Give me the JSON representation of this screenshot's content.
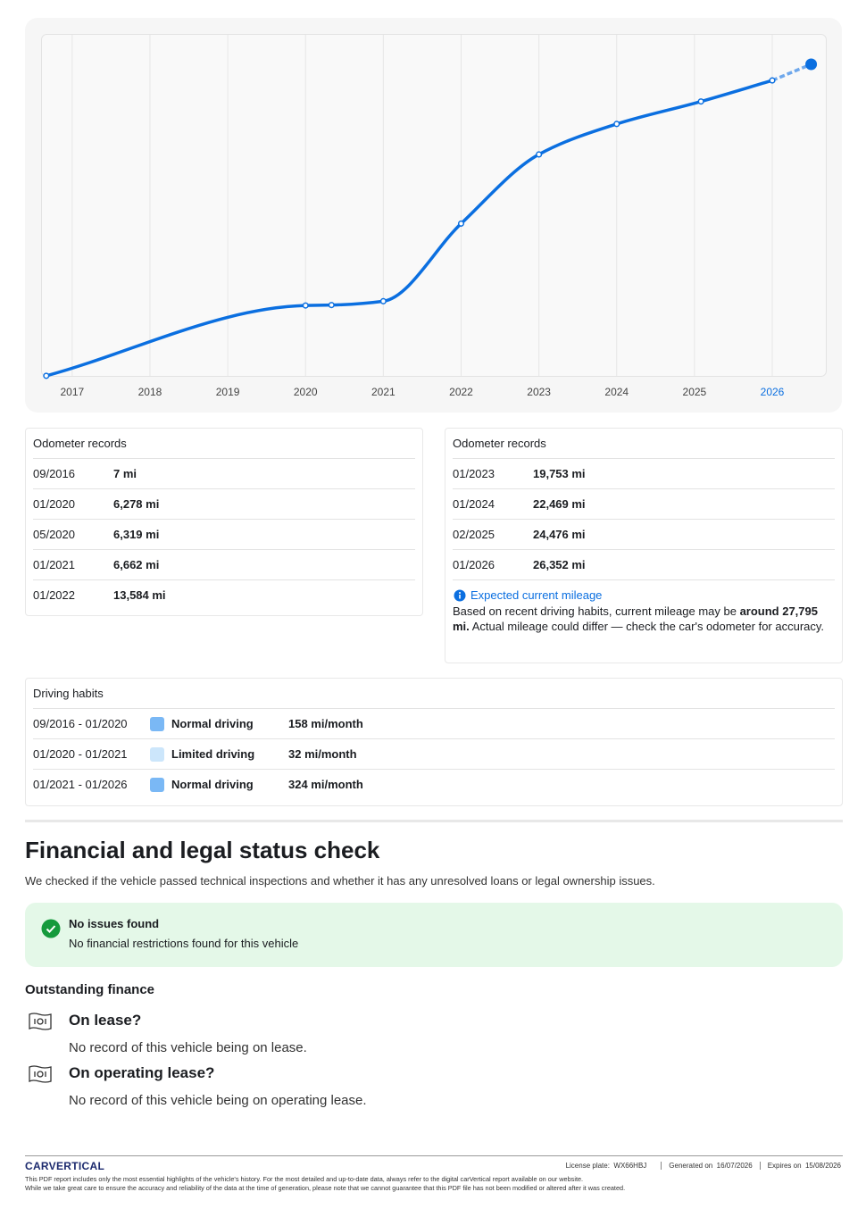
{
  "chart_data": {
    "type": "line",
    "x": [
      "09/2016",
      "01/2020",
      "05/2020",
      "01/2021",
      "01/2022",
      "01/2023",
      "01/2024",
      "02/2025",
      "01/2026"
    ],
    "series": [
      {
        "color": "#0b6fe0",
        "values": [
          7,
          6278,
          6319,
          6662,
          13584,
          19753,
          22469,
          24476,
          26352
        ]
      }
    ],
    "estimate": {
      "x": "07/2026",
      "value": 27795,
      "color": "#6fa8ec"
    },
    "xlim": [
      2016.6,
      2026.7
    ],
    "xticks": [
      2017,
      2018,
      2019,
      2020,
      2021,
      2022,
      2023,
      2024,
      2025,
      2026
    ],
    "ylim": [
      0,
      30500
    ],
    "grid": true,
    "highlight_tick": 2026
  },
  "left_records": {
    "title": "Odometer records",
    "rows": [
      [
        "09/2016",
        "7 mi"
      ],
      [
        "01/2020",
        "6,278 mi"
      ],
      [
        "05/2020",
        "6,319 mi"
      ],
      [
        "01/2021",
        "6,662 mi"
      ],
      [
        "01/2022",
        "13,584 mi"
      ]
    ]
  },
  "right_records": {
    "title": "Odometer records",
    "rows": [
      [
        "01/2023",
        "19,753 mi"
      ],
      [
        "01/2024",
        "22,469 mi"
      ],
      [
        "02/2025",
        "24,476 mi"
      ],
      [
        "01/2026",
        "26,352 mi"
      ]
    ],
    "expected": {
      "title": "Expected current mileage",
      "text_before": "Based on recent driving habits, current mileage may be ",
      "bold": "around 27,795 mi.",
      "text_after": " Actual mileage could differ — check the car's odometer for accuracy."
    }
  },
  "driving_habits": {
    "title": "Driving habits",
    "rows": [
      {
        "period": "09/2016 - 01/2020",
        "type": "Normal driving",
        "rate": "158 mi/month",
        "color": "#7ab8f5"
      },
      {
        "period": "01/2020 - 01/2021",
        "type": "Limited driving",
        "rate": "32 mi/month",
        "color": "#cce6fb"
      },
      {
        "period": "01/2021 - 01/2026",
        "type": "Normal driving",
        "rate": "324 mi/month",
        "color": "#7ab8f5"
      }
    ]
  },
  "financial": {
    "title": "Financial and legal status check",
    "intro": "We checked if the vehicle passed technical inspections and whether it has any unresolved loans or legal ownership issues.",
    "status": {
      "title": "No issues found",
      "text": "No financial restrictions found for this vehicle"
    },
    "section": "Outstanding finance",
    "items": [
      {
        "title": "On lease?",
        "text": "No record of this vehicle being on lease."
      },
      {
        "title": "On operating lease?",
        "text": "No record of this vehicle being on operating lease."
      }
    ]
  },
  "footer": {
    "logo": "CARVERTICAL",
    "license": "License plate:  WX66HBJ",
    "generated": "Generated on  16/07/2026",
    "expires": "Expires on  15/08/2026",
    "disclaimer": [
      "This PDF report includes only the most essential highlights of the vehicle's history. For the most detailed and up-to-date data, always refer to the digital carVertical report available on our website.",
      "While we take great care to ensure the accuracy and reliability of the data at the time of generation, please note that we cannot guarantee that this PDF file has not been modified or altered after it was created."
    ]
  }
}
